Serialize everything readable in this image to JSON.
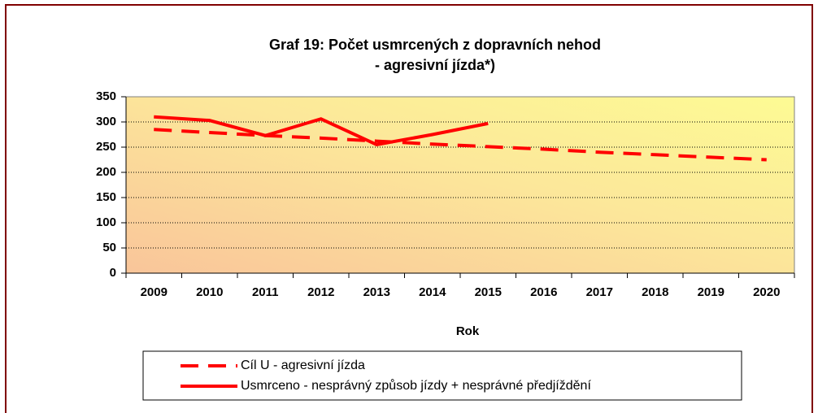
{
  "chart_data": {
    "type": "line",
    "title": "Graf 19: Počet usmrcených z dopravních nehod",
    "subtitle": "- agresivní jízda*)",
    "x_label": "Rok",
    "categories": [
      "2009",
      "2010",
      "2011",
      "2012",
      "2013",
      "2014",
      "2015",
      "2016",
      "2017",
      "2018",
      "2019",
      "2020"
    ],
    "series": [
      {
        "name": "Cíl U - agresivní jízda",
        "color": "#ff0000",
        "dashed": true,
        "values": [
          285,
          279,
          273,
          268,
          262,
          256,
          251,
          246,
          240,
          235,
          230,
          225
        ]
      },
      {
        "name": "Usmrceno - nesprávný způsob jízdy + nesprávné předjíždění",
        "color": "#ff0000",
        "dashed": false,
        "values": [
          310,
          303,
          273,
          306,
          255,
          275,
          297,
          null,
          null,
          null,
          null,
          null
        ]
      }
    ],
    "ylim": [
      0,
      350
    ],
    "yticks": [
      0,
      50,
      100,
      150,
      200,
      250,
      300,
      350
    ],
    "grid": true
  }
}
